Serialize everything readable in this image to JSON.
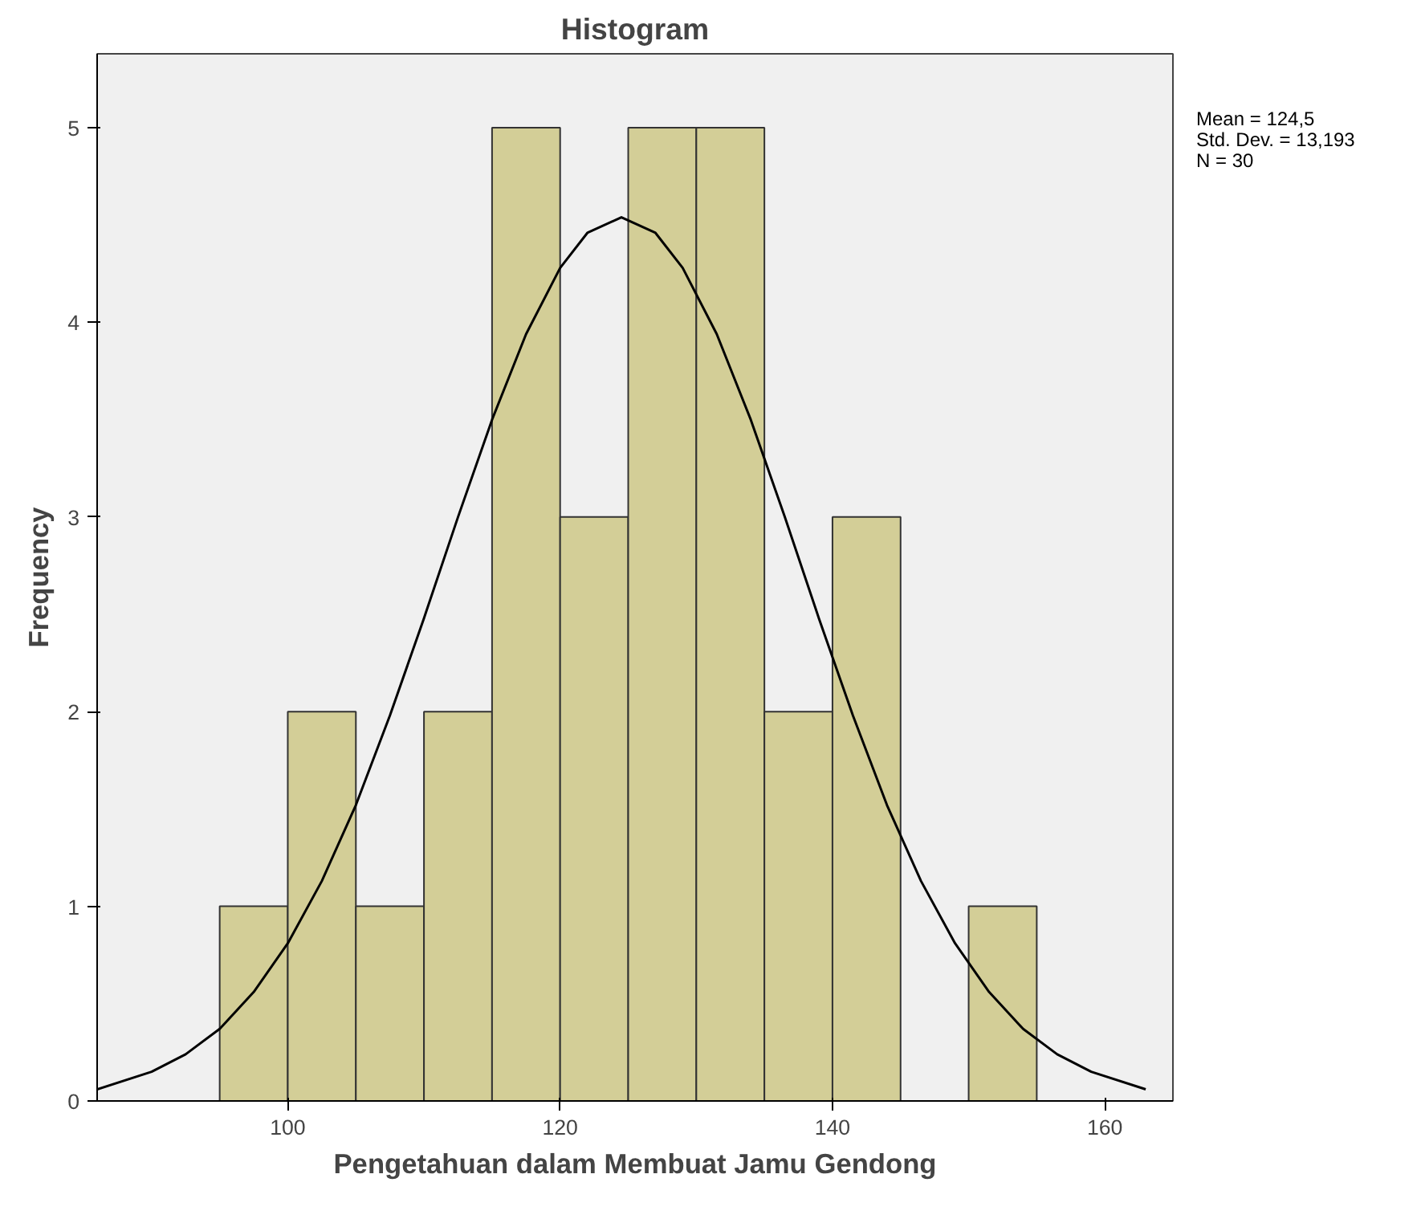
{
  "chart_data": {
    "type": "histogram",
    "title": "Histogram",
    "xlabel": "Pengetahuan dalam Membuat Jamu Gendong",
    "ylabel": "Frequency",
    "bins": [
      95,
      100,
      105,
      110,
      115,
      120,
      125,
      130,
      135,
      140,
      145,
      150,
      155
    ],
    "values": [
      1,
      2,
      1,
      2,
      5,
      3,
      5,
      5,
      2,
      3,
      0,
      1
    ],
    "color": "#d3ce97",
    "series": [
      {
        "type": "line",
        "color": "#000000",
        "x": [
          86,
          90,
          92.5,
          95,
          97.5,
          100,
          102.5,
          105,
          107.5,
          110,
          112.5,
          115,
          117.5,
          120,
          122,
          124.5,
          127,
          129,
          131.5,
          134,
          136.5,
          139,
          141.5,
          144,
          146.5,
          149,
          151.5,
          154,
          156.5,
          159,
          163
        ],
        "values": [
          0.06,
          0.15,
          0.24,
          0.37,
          0.56,
          0.81,
          1.13,
          1.52,
          1.98,
          2.48,
          3.0,
          3.5,
          3.94,
          4.28,
          4.46,
          4.54,
          4.46,
          4.28,
          3.94,
          3.5,
          3.0,
          2.48,
          1.98,
          1.52,
          1.13,
          0.81,
          0.56,
          0.37,
          0.24,
          0.15,
          0.06
        ]
      }
    ],
    "annotations": [
      "Mean = 124,5",
      "Std. Dev. = 13,193",
      "N = 30"
    ],
    "xlim": [
      86,
      165
    ],
    "ylim": [
      0,
      5.38
    ],
    "xticks": [
      100,
      120,
      140,
      160
    ],
    "yticks": [
      0,
      1,
      2,
      3,
      4,
      5
    ],
    "grid": false
  }
}
